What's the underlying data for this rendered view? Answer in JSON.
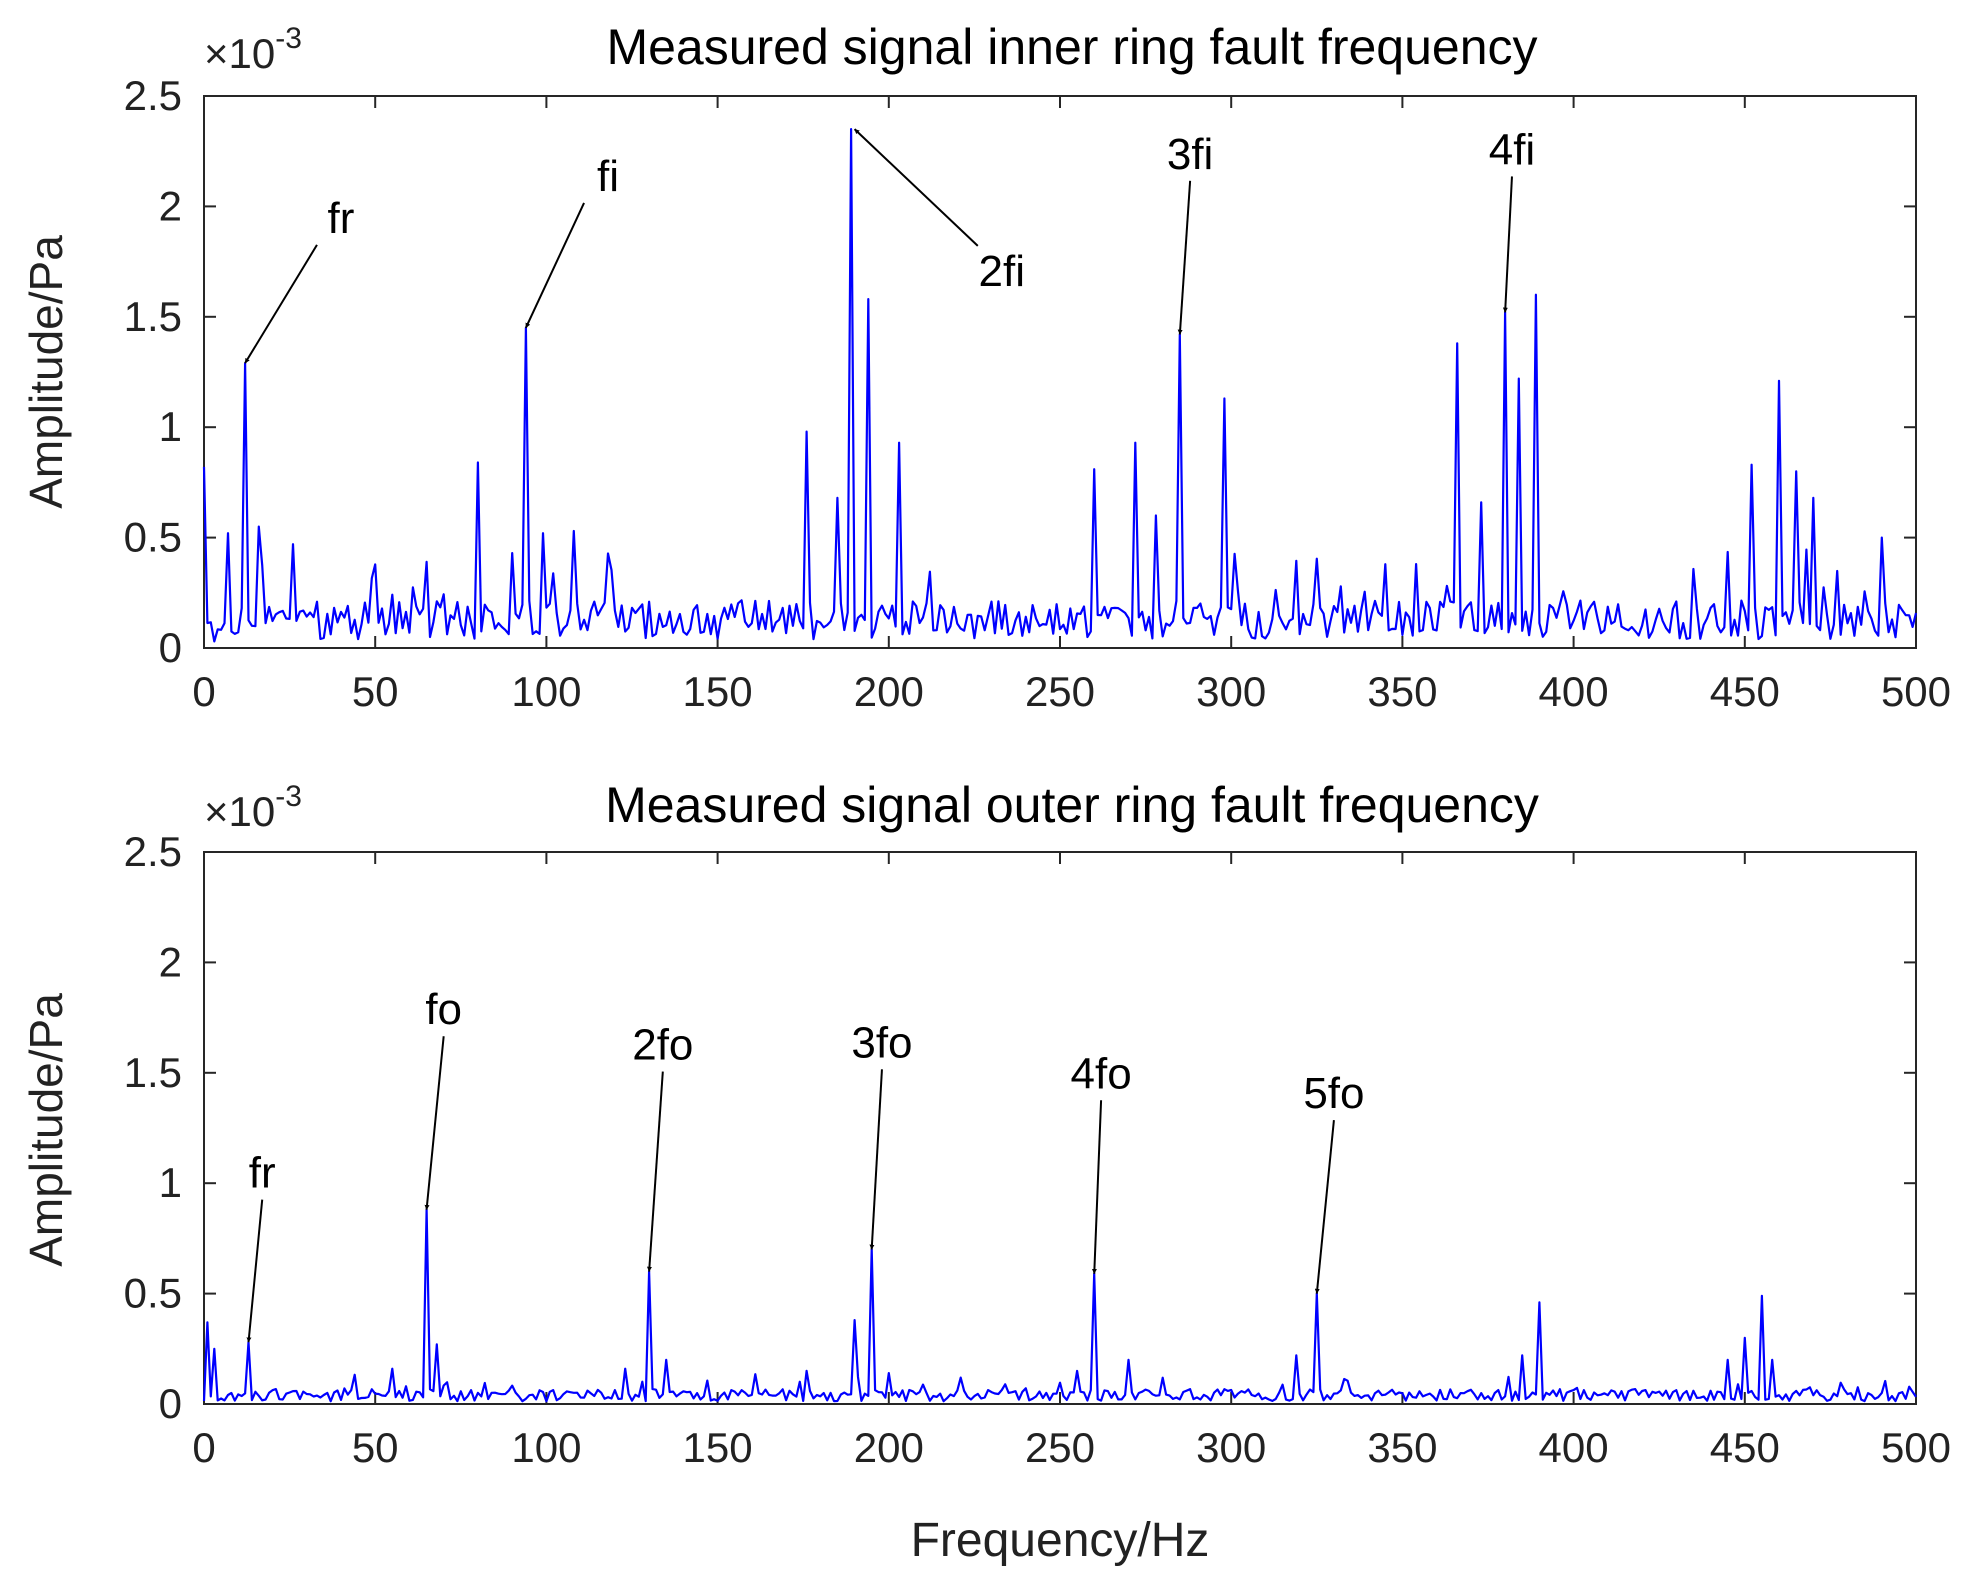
{
  "chart_data": [
    {
      "type": "line",
      "title": "Measured signal inner ring fault frequency",
      "xlabel": "",
      "ylabel": "Amplitude/Pa",
      "xlim": [
        0,
        500
      ],
      "ylim": [
        0,
        2.5
      ],
      "y_exponent_label": "×10",
      "y_exponent_power": "-3",
      "xticks": [
        0,
        50,
        100,
        150,
        200,
        250,
        300,
        350,
        400,
        450,
        500
      ],
      "xtick_labels": [
        "0",
        "50",
        "100",
        "150",
        "200",
        "250",
        "300",
        "350",
        "400",
        "450",
        "500"
      ],
      "yticks": [
        0,
        0.5,
        1,
        1.5,
        2,
        2.5
      ],
      "ytick_labels": [
        "0",
        "0.5",
        "1",
        "1.5",
        "2",
        "2.5"
      ],
      "color": "#0000ff",
      "grid": false,
      "baseline_noise": 0.16,
      "peaks": [
        {
          "x": 0,
          "y": 0.82
        },
        {
          "x": 3,
          "y": 0.03
        },
        {
          "x": 7,
          "y": 0.52
        },
        {
          "x": 12,
          "y": 1.29
        },
        {
          "x": 16,
          "y": 0.55
        },
        {
          "x": 26,
          "y": 0.47
        },
        {
          "x": 65,
          "y": 0.39
        },
        {
          "x": 80,
          "y": 0.84
        },
        {
          "x": 90,
          "y": 0.43
        },
        {
          "x": 94,
          "y": 1.45
        },
        {
          "x": 99,
          "y": 0.52
        },
        {
          "x": 108,
          "y": 0.53
        },
        {
          "x": 176,
          "y": 0.98
        },
        {
          "x": 185,
          "y": 0.68
        },
        {
          "x": 189,
          "y": 2.35
        },
        {
          "x": 194,
          "y": 1.58
        },
        {
          "x": 203,
          "y": 0.93
        },
        {
          "x": 260,
          "y": 0.81
        },
        {
          "x": 272,
          "y": 0.93
        },
        {
          "x": 278,
          "y": 0.6
        },
        {
          "x": 285,
          "y": 1.42
        },
        {
          "x": 298,
          "y": 1.13
        },
        {
          "x": 366,
          "y": 1.38
        },
        {
          "x": 373,
          "y": 0.66
        },
        {
          "x": 380,
          "y": 1.52
        },
        {
          "x": 384,
          "y": 1.22
        },
        {
          "x": 389,
          "y": 1.6
        },
        {
          "x": 452,
          "y": 0.83
        },
        {
          "x": 460,
          "y": 1.21
        },
        {
          "x": 465,
          "y": 0.8
        },
        {
          "x": 470,
          "y": 0.68
        },
        {
          "x": 490,
          "y": 0.5
        }
      ],
      "annotations": [
        {
          "label": "fr",
          "target": [
            12,
            1.29
          ],
          "text_at": [
            40,
            1.88
          ]
        },
        {
          "label": "fi",
          "target": [
            94,
            1.45
          ],
          "text_at": [
            118,
            2.07
          ]
        },
        {
          "label": "2fi",
          "target": [
            190,
            2.35
          ],
          "text_at": [
            233,
            1.64
          ]
        },
        {
          "label": "3fi",
          "target": [
            285,
            1.42
          ],
          "text_at": [
            288,
            2.17
          ]
        },
        {
          "label": "4fi",
          "target": [
            380,
            1.52
          ],
          "text_at": [
            382,
            2.19
          ]
        }
      ]
    },
    {
      "type": "line",
      "title": "Measured signal outer ring fault frequency",
      "xlabel": "Frequency/Hz",
      "ylabel": "Amplitude/Pa",
      "xlim": [
        0,
        500
      ],
      "ylim": [
        0,
        2.5
      ],
      "y_exponent_label": "×10",
      "y_exponent_power": "-3",
      "xticks": [
        0,
        50,
        100,
        150,
        200,
        250,
        300,
        350,
        400,
        450,
        500
      ],
      "xtick_labels": [
        "0",
        "50",
        "100",
        "150",
        "200",
        "250",
        "300",
        "350",
        "400",
        "450",
        "500"
      ],
      "yticks": [
        0,
        0.5,
        1,
        1.5,
        2,
        2.5
      ],
      "ytick_labels": [
        "0",
        "0.5",
        "1",
        "1.5",
        "2",
        "2.5"
      ],
      "color": "#0000ff",
      "grid": false,
      "baseline_noise": 0.05,
      "peaks": [
        {
          "x": 1,
          "y": 0.37
        },
        {
          "x": 3,
          "y": 0.25
        },
        {
          "x": 13,
          "y": 0.28
        },
        {
          "x": 55,
          "y": 0.16
        },
        {
          "x": 65,
          "y": 0.88
        },
        {
          "x": 68,
          "y": 0.27
        },
        {
          "x": 123,
          "y": 0.16
        },
        {
          "x": 130,
          "y": 0.6
        },
        {
          "x": 135,
          "y": 0.2
        },
        {
          "x": 176,
          "y": 0.15
        },
        {
          "x": 190,
          "y": 0.38
        },
        {
          "x": 195,
          "y": 0.7
        },
        {
          "x": 200,
          "y": 0.14
        },
        {
          "x": 255,
          "y": 0.15
        },
        {
          "x": 260,
          "y": 0.59
        },
        {
          "x": 270,
          "y": 0.2
        },
        {
          "x": 319,
          "y": 0.22
        },
        {
          "x": 325,
          "y": 0.5
        },
        {
          "x": 385,
          "y": 0.22
        },
        {
          "x": 390,
          "y": 0.46
        },
        {
          "x": 445,
          "y": 0.2
        },
        {
          "x": 450,
          "y": 0.3
        },
        {
          "x": 455,
          "y": 0.49
        },
        {
          "x": 458,
          "y": 0.2
        }
      ],
      "annotations": [
        {
          "label": "fr",
          "target": [
            13,
            0.28
          ],
          "text_at": [
            17,
            0.98
          ]
        },
        {
          "label": "fo",
          "target": [
            65,
            0.88
          ],
          "text_at": [
            70,
            1.72
          ]
        },
        {
          "label": "2fo",
          "target": [
            130,
            0.6
          ],
          "text_at": [
            134,
            1.56
          ]
        },
        {
          "label": "3fo",
          "target": [
            195,
            0.7
          ],
          "text_at": [
            198,
            1.57
          ]
        },
        {
          "label": "4fo",
          "target": [
            260,
            0.59
          ],
          "text_at": [
            262,
            1.43
          ]
        },
        {
          "label": "5fo",
          "target": [
            325,
            0.5
          ],
          "text_at": [
            330,
            1.34
          ]
        }
      ]
    }
  ]
}
